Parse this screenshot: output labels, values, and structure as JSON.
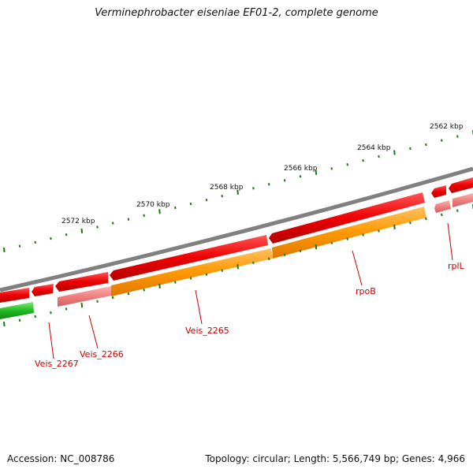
{
  "title": "Verminephrobacter eiseniae EF01-2, complete genome",
  "accession_text": "Accession: NC_008786",
  "topology_text": "Topology: circular; Length: 5,566,749 bp; Genes: 4,966",
  "colors": {
    "backbone": "#808080",
    "forward_strand_gene": "#e00000",
    "forward_strand_gene_light": "#f08080",
    "reverse_strand_gene": "#ff9900",
    "reverse_strand_gene_green": "#22bb22",
    "tick": "#1a7a1a",
    "gene_label": "#cc0000",
    "scale_label": "#111111"
  },
  "scale_labels": [
    "2562 kbp",
    "2564 kbp",
    "2566 kbp",
    "2568 kbp",
    "2570 kbp",
    "2572 kbp"
  ],
  "gene_labels": [
    "Veis_2267",
    "Veis_2266",
    "Veis_2265",
    "rpoB",
    "rplL"
  ]
}
